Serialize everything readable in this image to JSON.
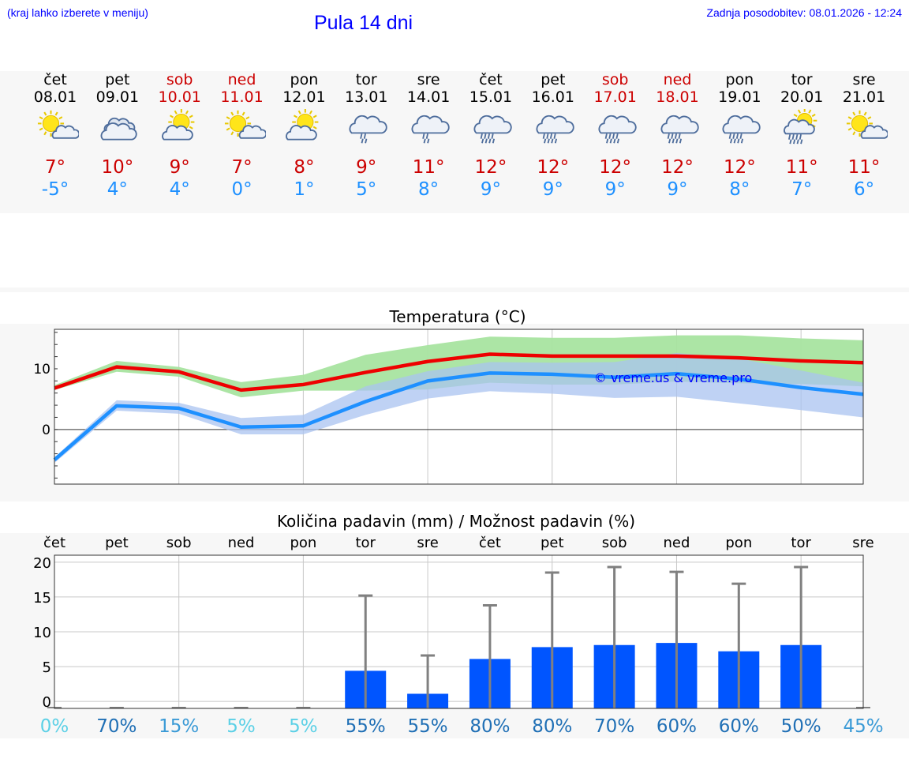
{
  "header": {
    "hint": "(kraj lahko izberete v meniju)",
    "title": "Pula 14 dni",
    "updated_label": "Zadnja posodobitev:",
    "updated_value": "08.01.2026 - 12:24"
  },
  "colors": {
    "max_line": "#ee0000",
    "max_band": "#a8e4a0",
    "min_line": "#1e90ff",
    "min_band": "#a9c3f0",
    "bar": "#0055ff",
    "weekday_text": "#000000",
    "weekend_text": "#cc0000",
    "tmax_text": "#cc0000",
    "tmin_text": "#1e90ff"
  },
  "days": [
    {
      "name": "čet",
      "date": "08.01",
      "icon": "sun-cloud-icon",
      "tmax": "7°",
      "tmin": "-5°",
      "weekend": false
    },
    {
      "name": "pet",
      "date": "09.01",
      "icon": "cloudy-icon",
      "tmax": "10°",
      "tmin": "4°",
      "weekend": false
    },
    {
      "name": "sob",
      "date": "10.01",
      "icon": "sun-cloudy-icon",
      "tmax": "9°",
      "tmin": "4°",
      "weekend": true
    },
    {
      "name": "ned",
      "date": "11.01",
      "icon": "sun-cloud-icon",
      "tmax": "7°",
      "tmin": "0°",
      "weekend": true
    },
    {
      "name": "pon",
      "date": "12.01",
      "icon": "sun-cloudy-icon",
      "tmax": "8°",
      "tmin": "1°",
      "weekend": false
    },
    {
      "name": "tor",
      "date": "13.01",
      "icon": "cloud-light-rain-icon",
      "tmax": "9°",
      "tmin": "5°",
      "weekend": false
    },
    {
      "name": "sre",
      "date": "14.01",
      "icon": "cloud-light-rain-icon",
      "tmax": "11°",
      "tmin": "8°",
      "weekend": false
    },
    {
      "name": "čet",
      "date": "15.01",
      "icon": "cloud-rain-icon",
      "tmax": "12°",
      "tmin": "9°",
      "weekend": false
    },
    {
      "name": "pet",
      "date": "16.01",
      "icon": "cloud-rain-icon",
      "tmax": "12°",
      "tmin": "9°",
      "weekend": false
    },
    {
      "name": "sob",
      "date": "17.01",
      "icon": "cloud-rain-icon",
      "tmax": "12°",
      "tmin": "9°",
      "weekend": true
    },
    {
      "name": "ned",
      "date": "18.01",
      "icon": "cloud-rain-icon",
      "tmax": "12°",
      "tmin": "9°",
      "weekend": true
    },
    {
      "name": "pon",
      "date": "19.01",
      "icon": "cloud-rain-icon",
      "tmax": "12°",
      "tmin": "8°",
      "weekend": false
    },
    {
      "name": "tor",
      "date": "20.01",
      "icon": "sun-cloud-rain-icon",
      "tmax": "11°",
      "tmin": "7°",
      "weekend": false
    },
    {
      "name": "sre",
      "date": "21.01",
      "icon": "sun-cloud-icon",
      "tmax": "11°",
      "tmin": "6°",
      "weekend": false
    }
  ],
  "chart_data": [
    {
      "type": "line",
      "title": "Temperatura (°C)",
      "watermark": "© vreme.us & vreme.pro",
      "x": [
        0,
        1,
        2,
        3,
        4,
        5,
        6,
        7,
        8,
        9,
        10,
        11,
        12,
        13
      ],
      "yticks": [
        0,
        10
      ],
      "ylim": [
        -9,
        16.5
      ],
      "series": [
        {
          "name": "max",
          "values": [
            6.8,
            10.3,
            9.5,
            6.5,
            7.4,
            9.4,
            11.2,
            12.4,
            12.1,
            12.1,
            12.1,
            11.8,
            11.3,
            11.0
          ],
          "band_low": [
            6.5,
            9.5,
            8.7,
            5.3,
            6.4,
            6.4,
            6.6,
            7.7,
            7.4,
            7.4,
            7.9,
            7.6,
            7.5,
            7.1
          ],
          "band_high": [
            7.3,
            11.3,
            10.3,
            7.8,
            9.0,
            12.3,
            13.9,
            15.3,
            15.1,
            15.1,
            15.5,
            15.5,
            15.0,
            14.7
          ]
        },
        {
          "name": "min",
          "values": [
            -5,
            3.9,
            3.5,
            0.4,
            0.6,
            4.6,
            8.0,
            9.3,
            9.1,
            8.6,
            9.2,
            8.3,
            6.9,
            5.8
          ],
          "band_low": [
            -5.5,
            3.1,
            2.6,
            -0.8,
            -0.8,
            2.4,
            5.1,
            6.3,
            5.9,
            5.2,
            5.4,
            4.3,
            3.2,
            2.0
          ],
          "band_high": [
            -4.6,
            4.8,
            4.4,
            1.9,
            2.4,
            7.1,
            9.6,
            11.1,
            11.0,
            11.1,
            12.6,
            11.7,
            9.7,
            7.7
          ]
        }
      ]
    },
    {
      "type": "bar",
      "title": "Količina padavin (mm) / Možnost padavin (%)",
      "categories": [
        "čet",
        "pet",
        "sob",
        "ned",
        "pon",
        "tor",
        "sre",
        "čet",
        "pet",
        "sob",
        "ned",
        "pon",
        "tor",
        "sre"
      ],
      "values": [
        0,
        0,
        0,
        0,
        0,
        4.4,
        1.1,
        6.1,
        7.8,
        8.1,
        8.4,
        7.2,
        8.1,
        0
      ],
      "error_high": [
        0,
        0,
        0,
        0,
        0,
        15.2,
        6.6,
        13.8,
        18.5,
        19.3,
        18.6,
        16.9,
        19.3,
        0
      ],
      "probability": [
        "0%",
        "70%",
        "15%",
        "5%",
        "5%",
        "55%",
        "55%",
        "80%",
        "80%",
        "70%",
        "60%",
        "60%",
        "50%",
        "45%"
      ],
      "probability_colors": [
        "#5bd0e6",
        "#1f6fb5",
        "#3a9ad6",
        "#5bd0e6",
        "#5bd0e6",
        "#1f6fb5",
        "#1f6fb5",
        "#1f6fb5",
        "#1f6fb5",
        "#1f6fb5",
        "#1f6fb5",
        "#1f6fb5",
        "#1f6fb5",
        "#3a9ad6"
      ],
      "yticks": [
        0,
        5,
        10,
        15,
        20
      ],
      "ylim": [
        -1,
        21
      ]
    }
  ]
}
